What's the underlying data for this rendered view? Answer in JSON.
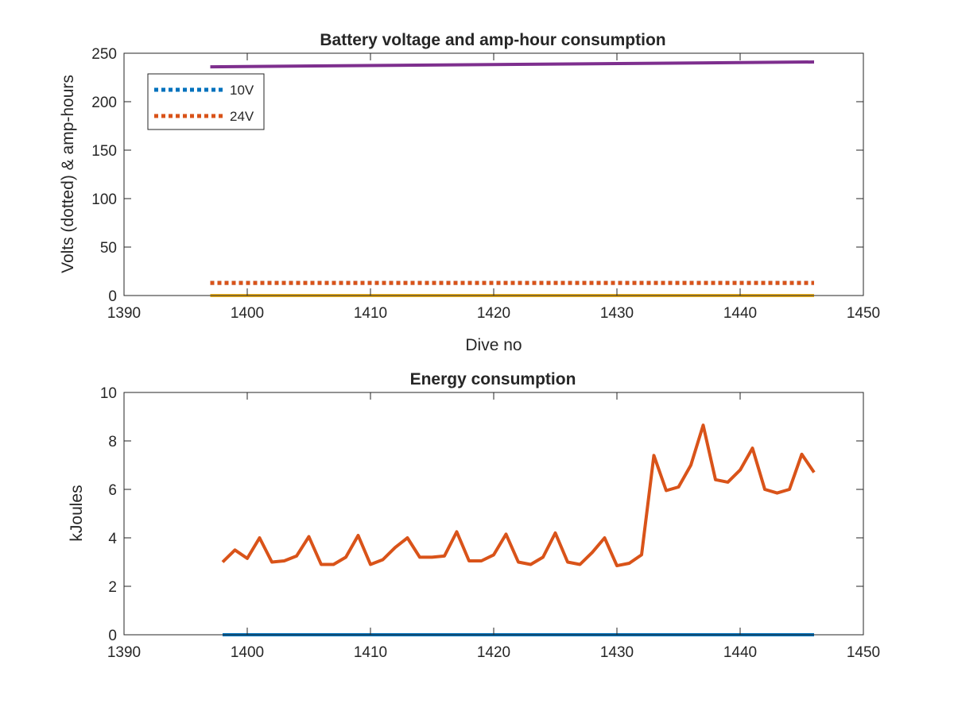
{
  "chart_data": [
    {
      "type": "line",
      "title": "Battery voltage and amp-hour consumption",
      "xlabel": "Dive no",
      "ylabel": "Volts (dotted) & amp-hours",
      "xlim": [
        1390,
        1450
      ],
      "ylim": [
        0,
        250
      ],
      "xticks": [
        1390,
        1400,
        1410,
        1420,
        1430,
        1440,
        1450
      ],
      "yticks": [
        0,
        50,
        100,
        150,
        200,
        250
      ],
      "grid": false,
      "legend": {
        "placement": "top-left",
        "entries": [
          "10V",
          "24V"
        ]
      },
      "series": [
        {
          "name": "10V",
          "style": "dotted",
          "color": "#0072BD",
          "x": [
            1397,
            1446
          ],
          "y": [
            13,
            13
          ]
        },
        {
          "name": "24V",
          "style": "dotted",
          "color": "#D95319",
          "x": [
            1397,
            1446
          ],
          "y": [
            13,
            13
          ]
        },
        {
          "style": "solid",
          "color": "#EDB120",
          "x": [
            1397,
            1446
          ],
          "y": [
            0,
            0
          ]
        },
        {
          "style": "solid",
          "color": "#7E2F8E",
          "x": [
            1397,
            1446
          ],
          "y": [
            236,
            241
          ]
        }
      ]
    },
    {
      "type": "line",
      "title": "Energy consumption",
      "xlabel": "",
      "ylabel": "kJoules",
      "xlim": [
        1390,
        1450
      ],
      "ylim": [
        0,
        10
      ],
      "xticks": [
        1390,
        1400,
        1410,
        1420,
        1430,
        1440,
        1450
      ],
      "yticks": [
        0,
        2,
        4,
        6,
        8,
        10
      ],
      "grid": false,
      "series": [
        {
          "style": "solid",
          "color": "#D95319",
          "x": [
            1398,
            1399,
            1400,
            1401,
            1402,
            1403,
            1404,
            1405,
            1406,
            1407,
            1408,
            1409,
            1410,
            1411,
            1412,
            1413,
            1414,
            1415,
            1416,
            1417,
            1418,
            1419,
            1420,
            1421,
            1422,
            1423,
            1424,
            1425,
            1426,
            1427,
            1428,
            1429,
            1430,
            1431,
            1432,
            1433,
            1434,
            1435,
            1436,
            1437,
            1438,
            1439,
            1440,
            1441,
            1442,
            1443,
            1444,
            1445,
            1446
          ],
          "y": [
            3.0,
            3.5,
            3.15,
            4.0,
            3.0,
            3.05,
            3.25,
            4.05,
            2.9,
            2.9,
            3.2,
            4.1,
            2.9,
            3.1,
            3.6,
            4.0,
            3.2,
            3.2,
            3.25,
            4.25,
            3.05,
            3.05,
            3.3,
            4.15,
            3.0,
            2.9,
            3.2,
            4.2,
            3.0,
            2.9,
            3.4,
            4.0,
            2.85,
            2.95,
            3.3,
            7.4,
            5.95,
            6.1,
            7.0,
            8.65,
            6.4,
            6.3,
            6.8,
            7.7,
            6.0,
            5.85,
            6.0,
            7.45,
            6.7
          ]
        },
        {
          "style": "solid",
          "color": "#0072BD",
          "x": [
            1398,
            1446
          ],
          "y": [
            0,
            0
          ]
        }
      ]
    }
  ]
}
